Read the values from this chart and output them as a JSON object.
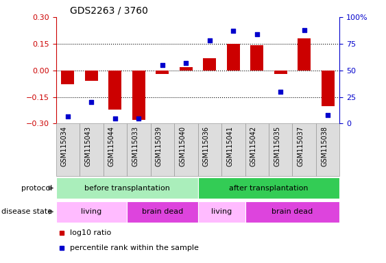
{
  "title": "GDS2263 / 3760",
  "samples": [
    "GSM115034",
    "GSM115043",
    "GSM115044",
    "GSM115033",
    "GSM115039",
    "GSM115040",
    "GSM115036",
    "GSM115041",
    "GSM115042",
    "GSM115035",
    "GSM115037",
    "GSM115038"
  ],
  "log10_ratio": [
    -0.08,
    -0.06,
    -0.22,
    -0.28,
    -0.02,
    0.02,
    0.07,
    0.15,
    0.14,
    -0.02,
    0.18,
    -0.2
  ],
  "percentile_rank": [
    7,
    20,
    5,
    5,
    55,
    57,
    78,
    87,
    84,
    30,
    88,
    8
  ],
  "ylim_left": [
    -0.3,
    0.3
  ],
  "ylim_right": [
    0,
    100
  ],
  "yticks_left": [
    -0.3,
    -0.15,
    0,
    0.15,
    0.3
  ],
  "yticks_right": [
    0,
    25,
    50,
    75,
    100
  ],
  "bar_color": "#cc0000",
  "dot_color": "#0000cc",
  "dotted_lines": [
    -0.15,
    0,
    0.15
  ],
  "protocol_groups": [
    {
      "label": "before transplantation",
      "start": 0,
      "end": 6,
      "color": "#aaeebb"
    },
    {
      "label": "after transplantation",
      "start": 6,
      "end": 12,
      "color": "#33cc55"
    }
  ],
  "disease_groups": [
    {
      "label": "living",
      "start": 0,
      "end": 3,
      "color": "#ffbbff"
    },
    {
      "label": "brain dead",
      "start": 3,
      "end": 6,
      "color": "#dd44dd"
    },
    {
      "label": "living",
      "start": 6,
      "end": 8,
      "color": "#ffbbff"
    },
    {
      "label": "brain dead",
      "start": 8,
      "end": 12,
      "color": "#dd44dd"
    }
  ],
  "legend_bar_label": "log10 ratio",
  "legend_dot_label": "percentile rank within the sample",
  "protocol_label": "protocol",
  "disease_label": "disease state",
  "col_bg_color": "#dddddd",
  "col_border_color": "#999999"
}
